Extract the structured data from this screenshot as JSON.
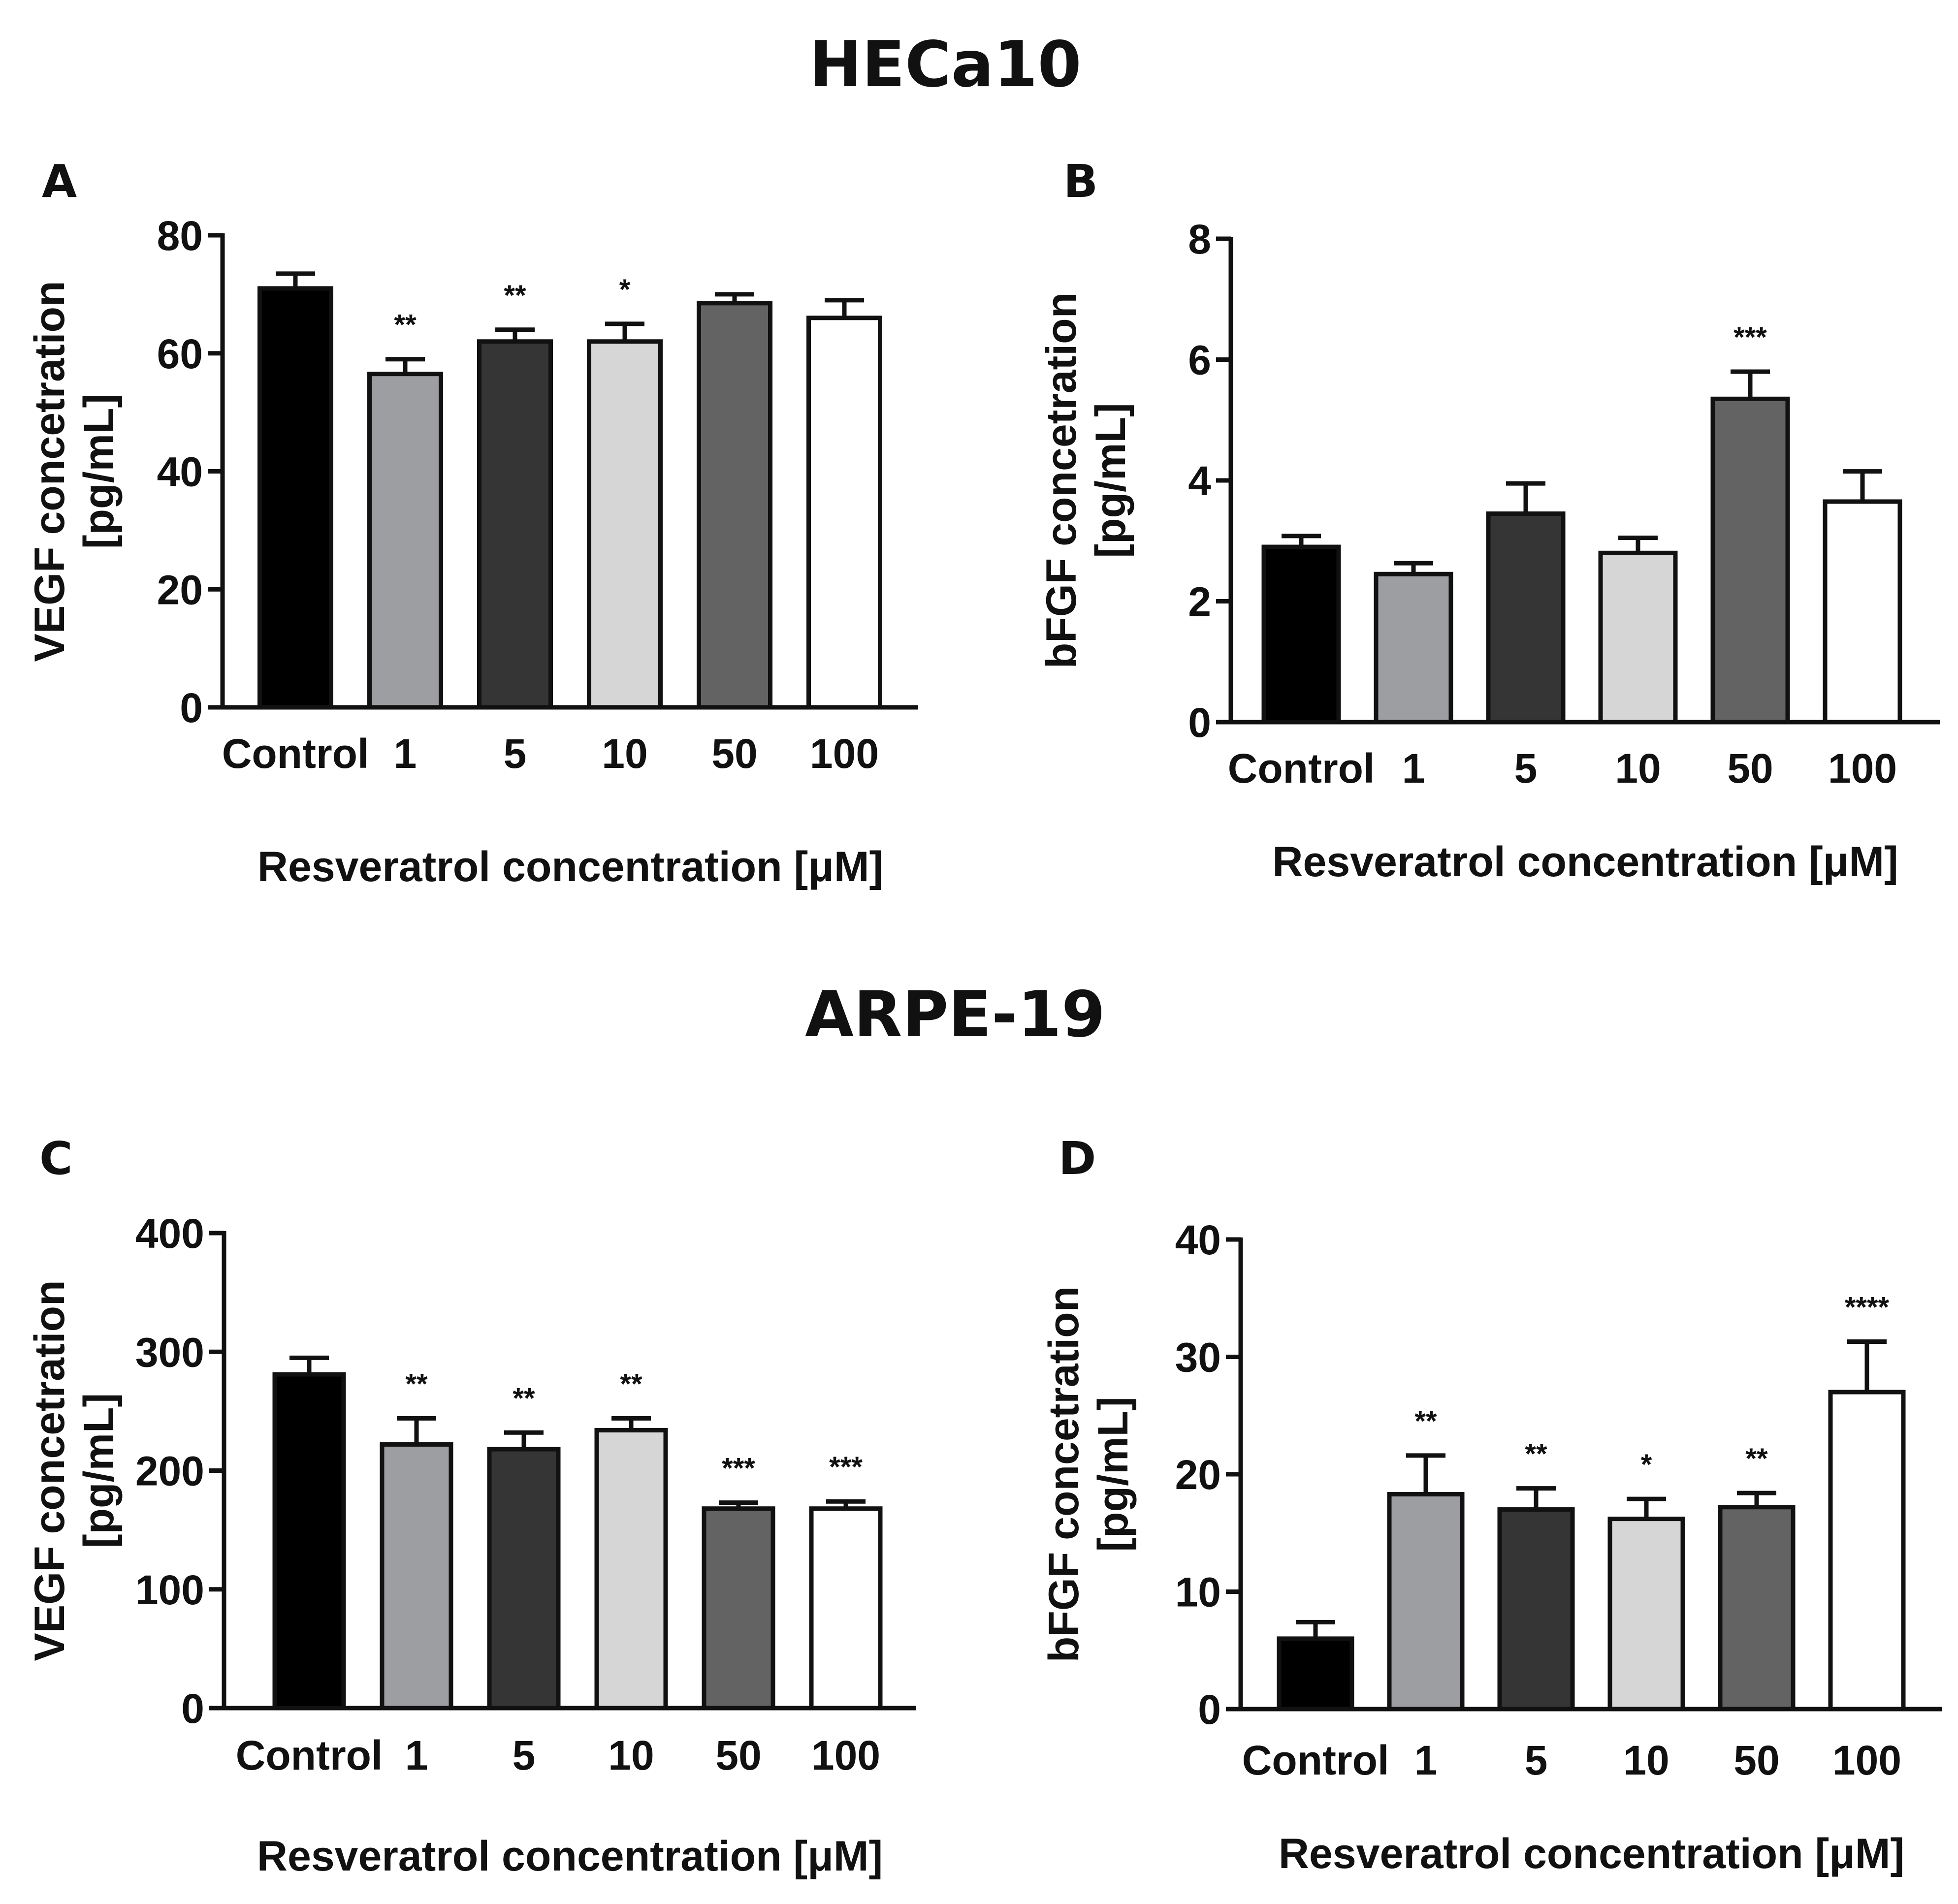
{
  "sections": [
    {
      "title": "HECa10"
    },
    {
      "title": "ARPE-19"
    }
  ],
  "colors": {
    "Control": "#000000",
    "1": "#9d9ea2",
    "5": "#353535",
    "10": "#d6d6d6",
    "50": "#636363",
    "100": "#ffffff",
    "stroke": "#111111"
  },
  "chart_data": [
    {
      "panel": "A",
      "type": "bar",
      "cell_line": "HECa10",
      "categories": [
        "Control",
        "1",
        "5",
        "10",
        "50",
        "100"
      ],
      "values": [
        71,
        56.5,
        62,
        62,
        68.5,
        66
      ],
      "errors": [
        2.5,
        2.5,
        2,
        3,
        1.5,
        3
      ],
      "significance": [
        "",
        "**",
        "**",
        "*",
        "",
        ""
      ],
      "ylim": [
        0,
        80
      ],
      "yticks": [
        0,
        20,
        40,
        60,
        80
      ],
      "ytick_labels": [
        "0",
        "20",
        "40",
        "60",
        "80"
      ],
      "ylabel_line1": "VEGF concetration",
      "ylabel_line2": "[pg/mL]",
      "xlabel": "Resveratrol  concentration [μM]"
    },
    {
      "panel": "B",
      "type": "bar",
      "cell_line": "HECa10",
      "categories": [
        "Control",
        "1",
        "5",
        "10",
        "50",
        "100"
      ],
      "values": [
        2.9,
        2.45,
        3.45,
        2.8,
        5.35,
        3.65
      ],
      "errors": [
        0.18,
        0.18,
        0.5,
        0.25,
        0.45,
        0.5
      ],
      "significance": [
        "",
        "",
        "",
        "",
        "***",
        ""
      ],
      "ylim": [
        0,
        8
      ],
      "yticks": [
        0,
        2,
        4,
        6,
        8
      ],
      "ytick_labels": [
        "0",
        "2",
        "4",
        "6",
        "8"
      ],
      "ylabel_line1": "bFGF concetration",
      "ylabel_line2": "[pg/mL]",
      "xlabel": "Resveratrol  concentration [μM]"
    },
    {
      "panel": "C",
      "type": "bar",
      "cell_line": "ARPE-19",
      "categories": [
        "Control",
        "1",
        "5",
        "10",
        "50",
        "100"
      ],
      "values": [
        281,
        222,
        218,
        234,
        168,
        168
      ],
      "errors": [
        14,
        22,
        14,
        10,
        5,
        6
      ],
      "significance": [
        "",
        "**",
        "**",
        "**",
        "***",
        "***"
      ],
      "ylim": [
        0,
        400
      ],
      "yticks": [
        0,
        100,
        200,
        300,
        400
      ],
      "ytick_labels": [
        "0",
        "100",
        "200",
        "300",
        "400"
      ],
      "ylabel_line1": "VEGF concetration",
      "ylabel_line2": "[pg/mL]",
      "xlabel": "Resveratrol  concentration [μM]"
    },
    {
      "panel": "D",
      "type": "bar",
      "cell_line": "ARPE-19",
      "categories": [
        "Control",
        "1",
        "5",
        "10",
        "50",
        "100"
      ],
      "values": [
        6,
        18.3,
        17,
        16.2,
        17.2,
        27
      ],
      "errors": [
        1.4,
        3.3,
        1.8,
        1.7,
        1.2,
        4.3
      ],
      "significance": [
        "",
        "**",
        "**",
        "*",
        "**",
        "****"
      ],
      "ylim": [
        0,
        40
      ],
      "yticks": [
        0,
        10,
        20,
        30,
        40
      ],
      "ytick_labels": [
        "0",
        "10",
        "20",
        "30",
        "40"
      ],
      "ylabel_line1": "bFGF concetration",
      "ylabel_line2": "[pg/mL]",
      "xlabel": "Resveratrol  concentration [μM]"
    }
  ]
}
